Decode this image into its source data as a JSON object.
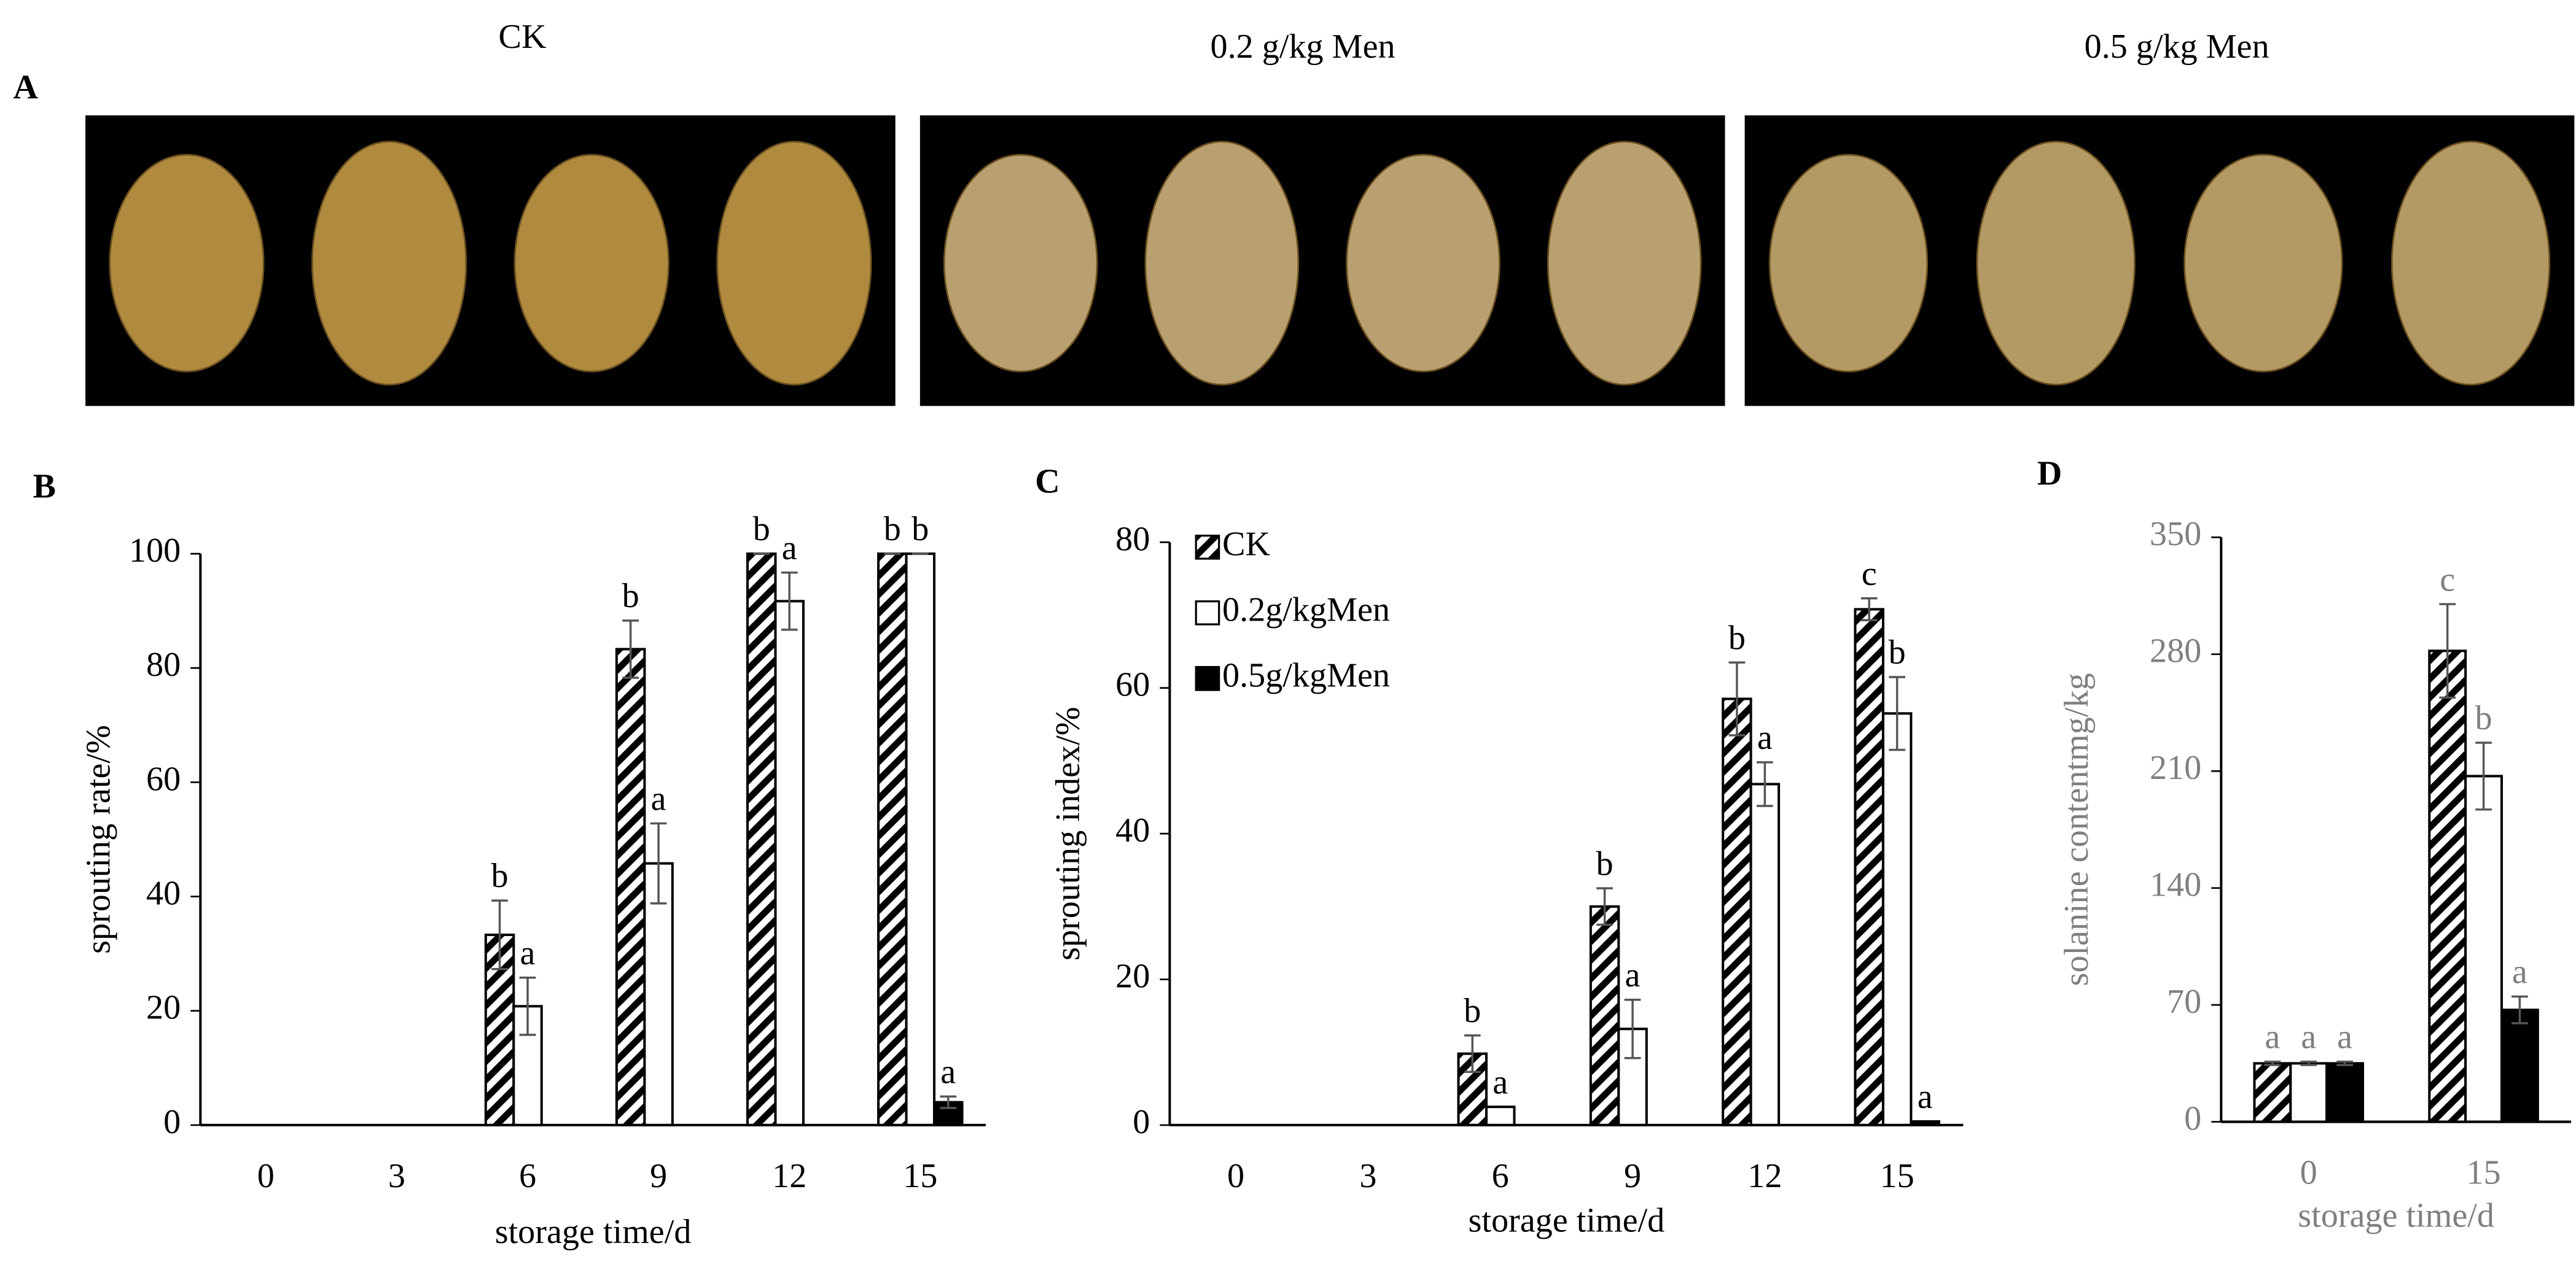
{
  "figure_panel": {
    "label": "A",
    "titles": [
      "CK",
      "0.2 g/kg Men",
      "0.5 g/kg Men"
    ]
  },
  "chart_data": [
    {
      "type": "bar",
      "panel_label": "B",
      "ylabel": "sprouting rate/%",
      "xlabel": "storage time/d",
      "text_color": "#000000",
      "categories": [
        "0",
        "3",
        "6",
        "9",
        "12",
        "15"
      ],
      "ylim": [
        0,
        100
      ],
      "yticks": [
        0,
        20,
        40,
        60,
        80,
        100
      ],
      "series": [
        {
          "pattern": "hatch",
          "color": "#000000",
          "values": [
            0,
            0,
            33.3,
            83.3,
            100,
            100
          ],
          "errors": [
            null,
            null,
            6,
            5,
            0,
            0
          ],
          "letters": [
            null,
            null,
            "b",
            "b",
            "b",
            "b"
          ]
        },
        {
          "pattern": "solid",
          "color": "#ffffff",
          "values": [
            0,
            0,
            20.8,
            45.8,
            91.7,
            100
          ],
          "errors": [
            null,
            null,
            5,
            7,
            5,
            0
          ],
          "letters": [
            null,
            null,
            "a",
            "a",
            "a",
            "b"
          ]
        },
        {
          "pattern": "solid",
          "color": "#000000",
          "values": [
            0,
            0,
            0,
            0,
            0,
            4
          ],
          "errors": [
            null,
            null,
            null,
            null,
            null,
            1
          ],
          "letters": [
            null,
            null,
            null,
            null,
            null,
            "a"
          ]
        }
      ]
    },
    {
      "type": "bar",
      "panel_label": "C",
      "ylabel": "sprouting index/%",
      "xlabel": "storage time/d",
      "text_color": "#000000",
      "legend": "upper left",
      "categories": [
        "0",
        "3",
        "6",
        "9",
        "12",
        "15"
      ],
      "ylim": [
        0,
        80
      ],
      "yticks": [
        0,
        20,
        40,
        60,
        80
      ],
      "series": [
        {
          "name": "CK",
          "pattern": "hatch",
          "color": "#000000",
          "values": [
            0,
            0,
            9.8,
            30,
            58.5,
            70.8
          ],
          "errors": [
            null,
            null,
            2.5,
            2.5,
            5,
            1.5
          ],
          "letters": [
            null,
            null,
            "b",
            "b",
            "b",
            "c"
          ]
        },
        {
          "name": "0.2g/kgMen",
          "pattern": "solid",
          "color": "#ffffff",
          "values": [
            0,
            0,
            2.5,
            13.2,
            46.8,
            56.5
          ],
          "errors": [
            null,
            null,
            null,
            4,
            3,
            5
          ],
          "letters": [
            null,
            null,
            "a",
            "a",
            "a",
            "b"
          ]
        },
        {
          "name": "0.5g/kgMen",
          "pattern": "solid",
          "color": "#000000",
          "values": [
            0,
            0,
            0,
            0,
            0,
            0.5
          ],
          "errors": [
            null,
            null,
            null,
            null,
            null,
            null
          ],
          "letters": [
            null,
            null,
            null,
            null,
            null,
            "a"
          ]
        }
      ]
    },
    {
      "type": "bar",
      "panel_label": "D",
      "ylabel": "solanine contentmg/kg",
      "xlabel": "storage time/d",
      "text_color": "#7f7f7f",
      "categories": [
        "0",
        "15"
      ],
      "ylim": [
        0,
        350
      ],
      "yticks": [
        0,
        70,
        140,
        210,
        280,
        350
      ],
      "series": [
        {
          "pattern": "hatch",
          "color": "#000000",
          "values": [
            35,
            282
          ],
          "errors": [
            1,
            28
          ],
          "letters": [
            "a",
            "c"
          ]
        },
        {
          "pattern": "solid",
          "color": "#ffffff",
          "values": [
            35,
            207
          ],
          "errors": [
            1,
            20
          ],
          "letters": [
            "a",
            "b"
          ]
        },
        {
          "pattern": "solid",
          "color": "#000000",
          "values": [
            35,
            67
          ],
          "errors": [
            1,
            8
          ],
          "letters": [
            "a",
            "a"
          ]
        }
      ]
    }
  ]
}
